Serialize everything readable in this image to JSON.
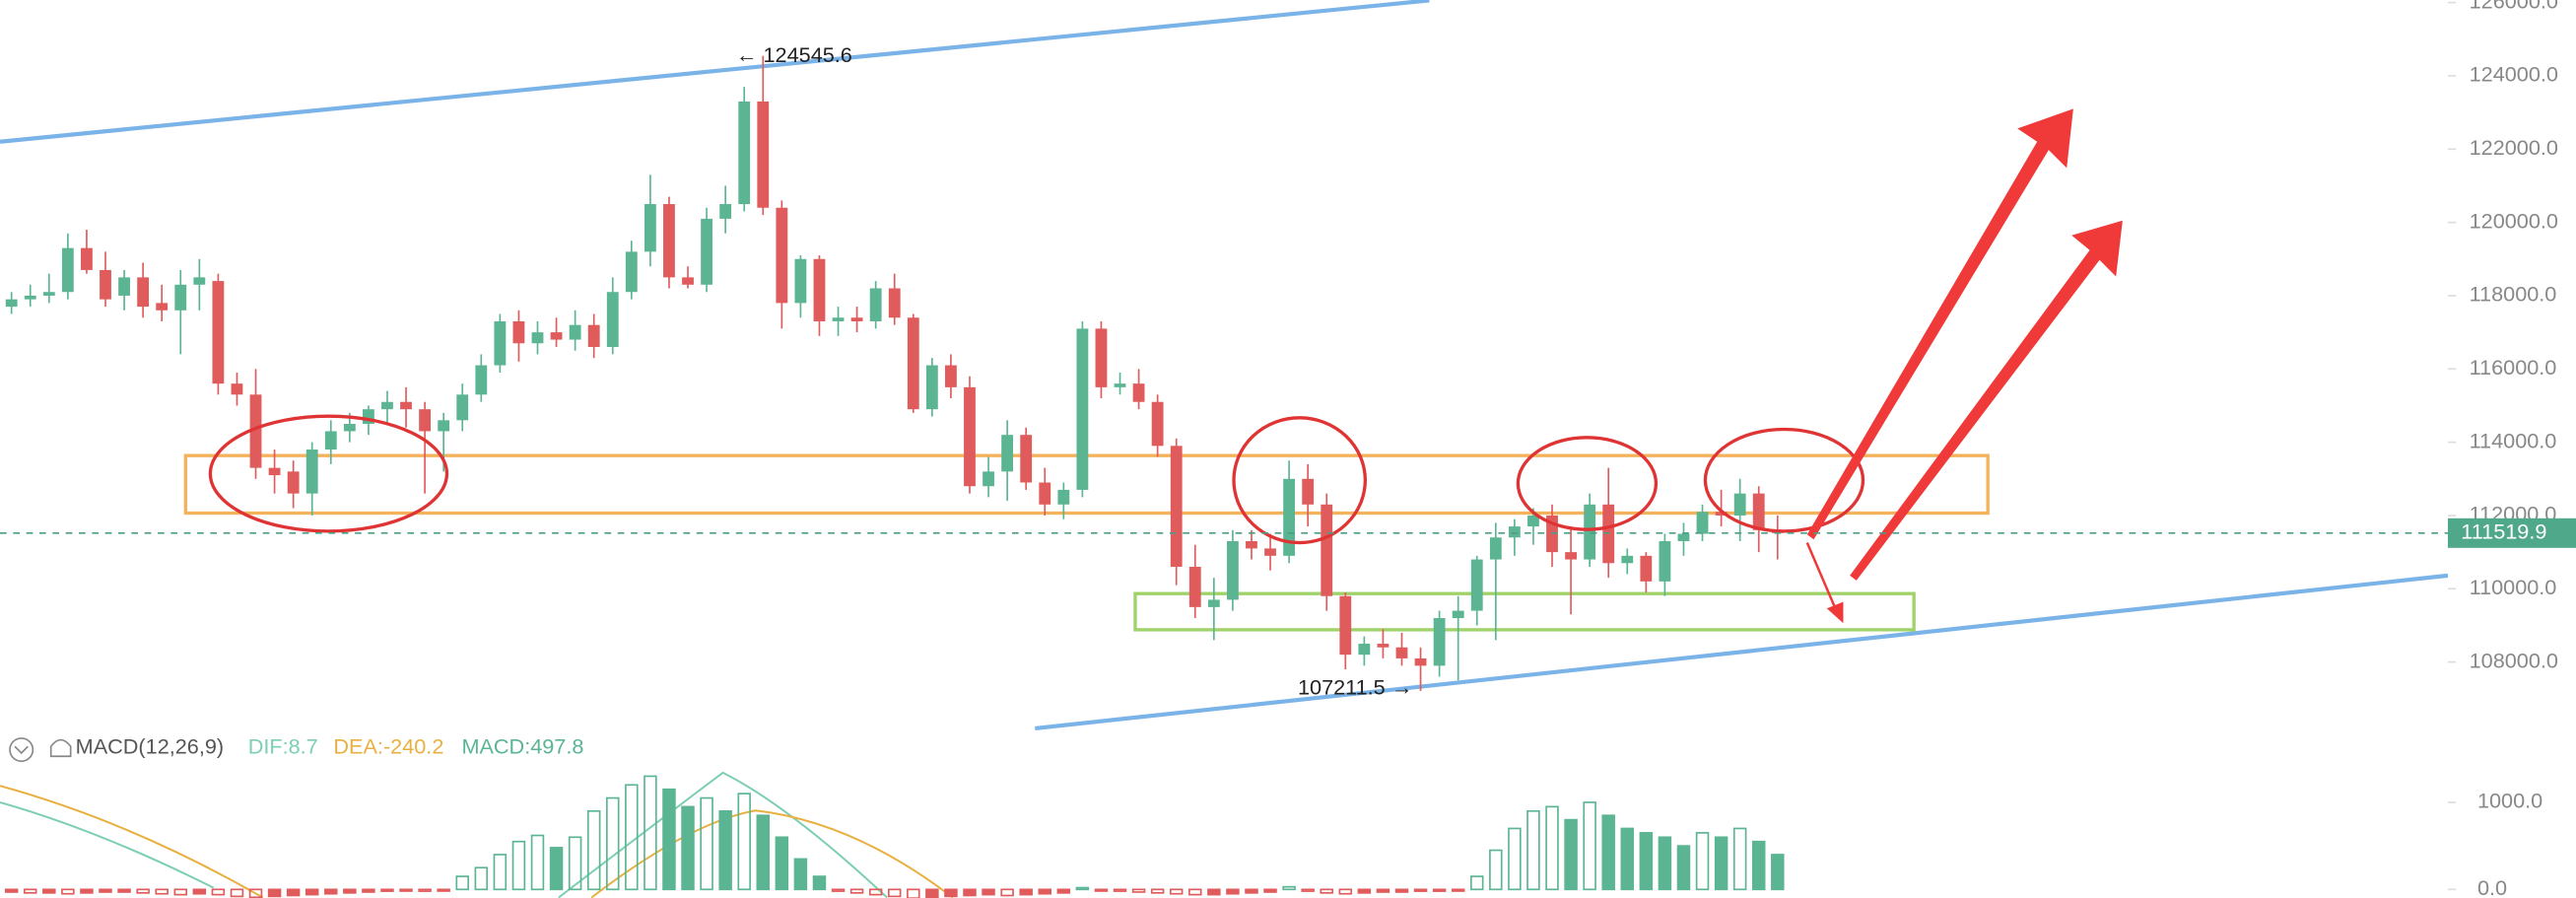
{
  "chart_data": {
    "type": "candlestick",
    "ylim": [
      106100,
      126060
    ],
    "yticks": [
      {
        "value": 108000,
        "label": "108000.0"
      },
      {
        "value": 110000,
        "label": "110000.0"
      },
      {
        "value": 112000,
        "label": "112000.0"
      },
      {
        "value": 114000,
        "label": "114000.0"
      },
      {
        "value": 116000,
        "label": "116000.0"
      },
      {
        "value": 118000,
        "label": "118000.0"
      },
      {
        "value": 120000,
        "label": "120000.0"
      },
      {
        "value": 122000,
        "label": "122000.0"
      },
      {
        "value": 124000,
        "label": "124000.0"
      },
      {
        "value": 126000,
        "label": "126000.0"
      }
    ],
    "up_color": "#5bb593",
    "down_color": "#e05c5c",
    "last_price": {
      "value": 111519.9,
      "label": "111519.9"
    },
    "annotations": [
      "← 124545.6",
      "107211.5 →"
    ],
    "candles": [
      [
        117700,
        118100,
        117500,
        117900
      ],
      [
        117900,
        118300,
        117700,
        118000
      ],
      [
        118000,
        118600,
        117800,
        118100
      ],
      [
        118100,
        119700,
        117900,
        119300
      ],
      [
        119300,
        119800,
        118600,
        118700
      ],
      [
        118700,
        119200,
        117700,
        117900
      ],
      [
        118000,
        118700,
        117600,
        118500
      ],
      [
        118500,
        118900,
        117400,
        117700
      ],
      [
        117800,
        118300,
        117300,
        117600
      ],
      [
        117600,
        118700,
        116400,
        118300
      ],
      [
        118300,
        119000,
        117600,
        118500
      ],
      [
        118400,
        118600,
        115300,
        115600
      ],
      [
        115600,
        115900,
        115000,
        115300
      ],
      [
        115300,
        116000,
        113000,
        113300
      ],
      [
        113300,
        113800,
        112600,
        113100
      ],
      [
        113200,
        113500,
        112200,
        112600
      ],
      [
        112600,
        114000,
        112000,
        113800
      ],
      [
        113800,
        114600,
        113400,
        114300
      ],
      [
        114300,
        114800,
        114000,
        114500
      ],
      [
        114500,
        115000,
        114200,
        114900
      ],
      [
        114900,
        115400,
        114500,
        115100
      ],
      [
        115100,
        115500,
        114400,
        114900
      ],
      [
        114900,
        115100,
        112600,
        114300
      ],
      [
        114300,
        114800,
        113200,
        114600
      ],
      [
        114600,
        115600,
        114300,
        115300
      ],
      [
        115300,
        116400,
        115100,
        116100
      ],
      [
        116100,
        117500,
        115900,
        117300
      ],
      [
        117300,
        117600,
        116200,
        116700
      ],
      [
        116700,
        117300,
        116400,
        117000
      ],
      [
        117000,
        117400,
        116600,
        116800
      ],
      [
        116800,
        117600,
        116500,
        117200
      ],
      [
        117200,
        117500,
        116300,
        116600
      ],
      [
        116600,
        118500,
        116400,
        118100
      ],
      [
        118100,
        119500,
        117900,
        119200
      ],
      [
        119200,
        121300,
        118800,
        120500
      ],
      [
        120500,
        120700,
        118200,
        118500
      ],
      [
        118500,
        118800,
        118200,
        118300
      ],
      [
        118300,
        120400,
        118100,
        120100
      ],
      [
        120100,
        121000,
        119700,
        120500
      ],
      [
        120500,
        123700,
        120300,
        123300
      ],
      [
        123300,
        124545.6,
        120200,
        120400
      ],
      [
        120400,
        120600,
        117100,
        117800
      ],
      [
        117800,
        119100,
        117400,
        119000
      ],
      [
        119000,
        119100,
        116900,
        117300
      ],
      [
        117300,
        117700,
        116900,
        117400
      ],
      [
        117400,
        117700,
        117000,
        117300
      ],
      [
        117300,
        118400,
        117100,
        118200
      ],
      [
        118200,
        118600,
        117200,
        117400
      ],
      [
        117400,
        117500,
        114800,
        114900
      ],
      [
        114900,
        116300,
        114700,
        116100
      ],
      [
        116100,
        116400,
        115200,
        115500
      ],
      [
        115500,
        115800,
        112600,
        112800
      ],
      [
        112800,
        113600,
        112500,
        113200
      ],
      [
        113200,
        114600,
        112400,
        114200
      ],
      [
        114200,
        114400,
        112700,
        112900
      ],
      [
        112900,
        113300,
        112000,
        112300
      ],
      [
        112300,
        112900,
        111900,
        112700
      ],
      [
        112700,
        117300,
        112500,
        117100
      ],
      [
        117100,
        117300,
        115200,
        115500
      ],
      [
        115500,
        115900,
        115300,
        115600
      ],
      [
        115600,
        116000,
        114900,
        115100
      ],
      [
        115100,
        115300,
        113600,
        113900
      ],
      [
        113900,
        114100,
        110100,
        110600
      ],
      [
        110600,
        111200,
        109200,
        109500
      ],
      [
        109500,
        110300,
        108600,
        109700
      ],
      [
        109700,
        111600,
        109400,
        111300
      ],
      [
        111300,
        111600,
        110800,
        111100
      ],
      [
        111100,
        111500,
        110500,
        110900
      ],
      [
        110900,
        113500,
        110700,
        113000
      ],
      [
        113000,
        113400,
        111700,
        112300
      ],
      [
        112300,
        112600,
        109400,
        109800
      ],
      [
        109800,
        109900,
        107800,
        108200
      ],
      [
        108200,
        108700,
        107900,
        108500
      ],
      [
        108500,
        108900,
        108100,
        108400
      ],
      [
        108400,
        108800,
        107900,
        108100
      ],
      [
        108100,
        108400,
        107211.5,
        107900
      ],
      [
        107900,
        109400,
        107600,
        109200
      ],
      [
        109200,
        109800,
        107500,
        109400
      ],
      [
        109400,
        110900,
        109000,
        110800
      ],
      [
        110800,
        111800,
        108600,
        111400
      ],
      [
        111400,
        111900,
        110900,
        111700
      ],
      [
        111700,
        112200,
        111200,
        112000
      ],
      [
        112000,
        112300,
        110600,
        111000
      ],
      [
        111000,
        111700,
        109300,
        110800
      ],
      [
        110800,
        112600,
        110600,
        112300
      ],
      [
        112300,
        113300,
        110300,
        110700
      ],
      [
        110700,
        111100,
        110400,
        110900
      ],
      [
        110900,
        111000,
        109900,
        110200
      ],
      [
        110200,
        111500,
        109800,
        111300
      ],
      [
        111300,
        111800,
        110900,
        111500
      ],
      [
        111500,
        112300,
        111300,
        112100
      ],
      [
        112100,
        112700,
        111700,
        112000
      ],
      [
        112000,
        113000,
        111300,
        112600
      ],
      [
        112600,
        112800,
        111000,
        111600
      ],
      [
        111600,
        112000,
        110800,
        111519.9
      ]
    ],
    "macd": {
      "title": "MACD(12,26,9)",
      "dif": "DIF:8.7",
      "dea": "DEA:-240.2",
      "value": "MACD:497.8",
      "ylim": [
        -94,
        1340
      ],
      "yticks": [
        {
          "value": 0,
          "label": "0.0"
        },
        {
          "value": 1000,
          "label": "1000.0"
        }
      ],
      "hist": [
        -30,
        -40,
        -40,
        -50,
        -40,
        -30,
        -30,
        -40,
        -50,
        -60,
        -50,
        -60,
        -80,
        -90,
        -80,
        -70,
        -60,
        -50,
        -40,
        -30,
        -20,
        -10,
        -20,
        -10,
        150,
        250,
        400,
        550,
        620,
        480,
        600,
        900,
        1050,
        1200,
        1300,
        1150,
        950,
        1050,
        900,
        1100,
        850,
        600,
        350,
        150,
        -20,
        -40,
        -60,
        -80,
        -100,
        -90,
        -80,
        -70,
        -60,
        -70,
        -60,
        -50,
        -40,
        20,
        -10,
        -20,
        -30,
        -40,
        -50,
        -60,
        -60,
        -50,
        -40,
        -30,
        30,
        -20,
        -40,
        -50,
        -40,
        -30,
        -30,
        -20,
        -20,
        -10,
        150,
        450,
        700,
        900,
        950,
        800,
        1000,
        850,
        700,
        650,
        600,
        500,
        650,
        600,
        700,
        550,
        400
      ]
    }
  }
}
